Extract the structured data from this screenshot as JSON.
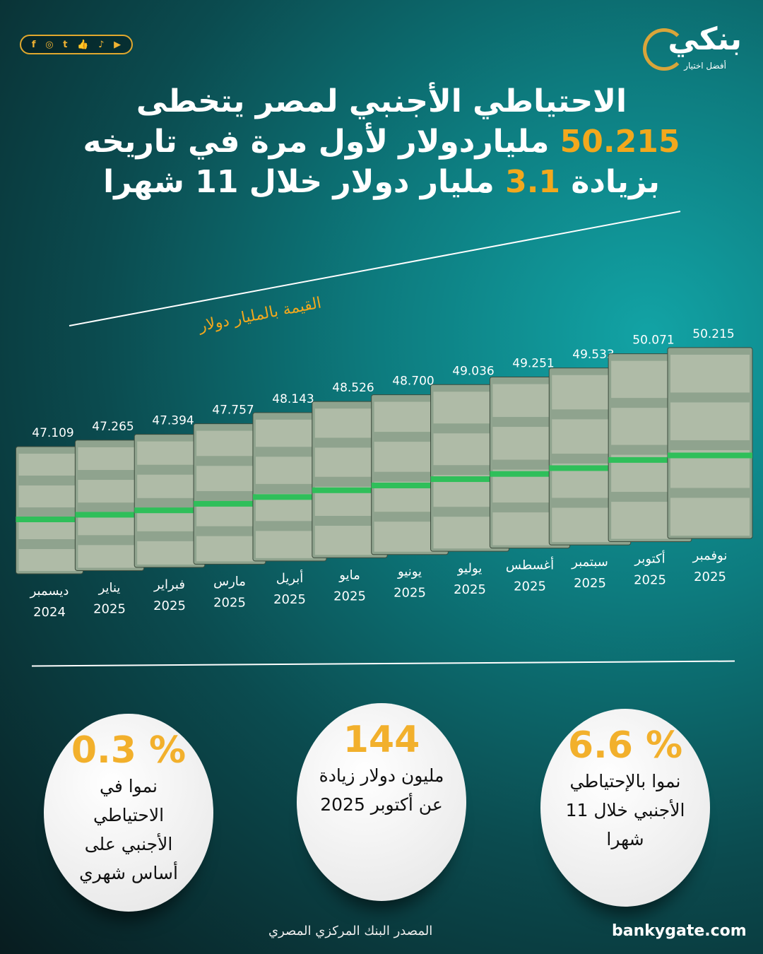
{
  "social": {
    "icons": [
      "facebook-icon",
      "instagram-icon",
      "twitter-icon",
      "thumbs-up-icon",
      "tiktok-icon",
      "youtube-icon"
    ],
    "glyphs": [
      "f",
      "◎",
      "t",
      "👍",
      "♪",
      "▶"
    ]
  },
  "logo": {
    "word": "بنكي",
    "tagline": "أفضل اختيار"
  },
  "title": {
    "line1": "الاحتياطي الأجنبي لمصر يتخطى",
    "line2_value": "50.215",
    "line2_text": "ملياردولار لأول مرة في تاريخه",
    "line3_pre": "بزيادة",
    "line3_value": "3.1",
    "line3_post": "مليار دولار خلال 11 شهرا"
  },
  "colors": {
    "accent": "#f2a81d",
    "bg_teal": "#0d7b7e",
    "bg_dark": "#081c1f"
  },
  "chart_data": {
    "type": "bar",
    "ylabel": "القيمة بالمليار دولار",
    "categories": [
      {
        "month": "ديسمبر",
        "year": "2024"
      },
      {
        "month": "يناير",
        "year": "2025"
      },
      {
        "month": "فبراير",
        "year": "2025"
      },
      {
        "month": "مارس",
        "year": "2025"
      },
      {
        "month": "أبريل",
        "year": "2025"
      },
      {
        "month": "مايو",
        "year": "2025"
      },
      {
        "month": "يونيو",
        "year": "2025"
      },
      {
        "month": "يوليو",
        "year": "2025"
      },
      {
        "month": "أغسطس",
        "year": "2025"
      },
      {
        "month": "سبتمبر",
        "year": "2025"
      },
      {
        "month": "أكتوبر",
        "year": "2025"
      },
      {
        "month": "نوفمبر",
        "year": "2025"
      }
    ],
    "values": [
      47.109,
      47.265,
      47.394,
      47.757,
      48.143,
      48.526,
      48.7,
      49.036,
      49.251,
      49.533,
      50.071,
      50.215
    ],
    "value_labels": [
      "47.109",
      "47.265",
      "47.394",
      "47.757",
      "48.143",
      "48.526",
      "48.700",
      "49.036",
      "49.251",
      "49.533",
      "50.071",
      "50.215"
    ]
  },
  "stats": [
    {
      "value": "% 6.6",
      "text": "نموا بالإحتياطي الأجنبي خلال 11 شهرا"
    },
    {
      "value": "144",
      "text": "مليون دولار زيادة عن أكتوبر 2025"
    },
    {
      "value": "% 0.3",
      "text": "نموا في الاحتياطي الأجنبي على أساس شهري"
    }
  ],
  "footer": {
    "source": "المصدر البنك المركزي المصري",
    "site": "bankygate.com"
  }
}
